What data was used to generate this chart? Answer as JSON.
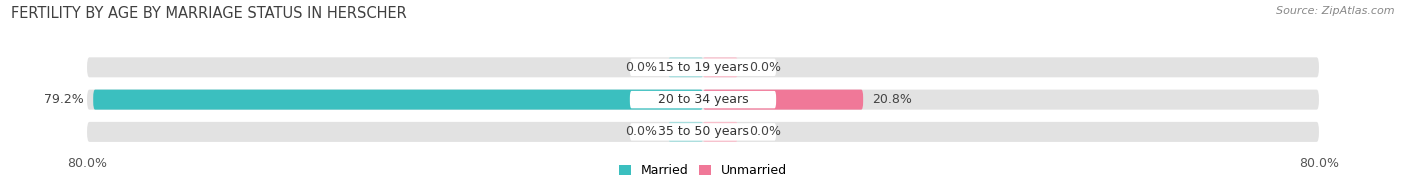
{
  "title": "FERTILITY BY AGE BY MARRIAGE STATUS IN HERSCHER",
  "source": "Source: ZipAtlas.com",
  "categories": [
    "15 to 19 years",
    "20 to 34 years",
    "35 to 50 years"
  ],
  "married_values": [
    0.0,
    79.2,
    0.0
  ],
  "unmarried_values": [
    0.0,
    20.8,
    0.0
  ],
  "max_val": 80.0,
  "married_color": "#3bbfbf",
  "unmarried_color": "#f07898",
  "married_light": "#a8dede",
  "unmarried_light": "#f9c0cc",
  "bar_bg_color": "#e2e2e2",
  "bar_height": 0.62,
  "small_bar_width": 4.5,
  "title_fontsize": 10.5,
  "source_fontsize": 8,
  "label_fontsize": 9,
  "category_fontsize": 9,
  "legend_fontsize": 9,
  "figsize": [
    14.06,
    1.96
  ],
  "dpi": 100
}
